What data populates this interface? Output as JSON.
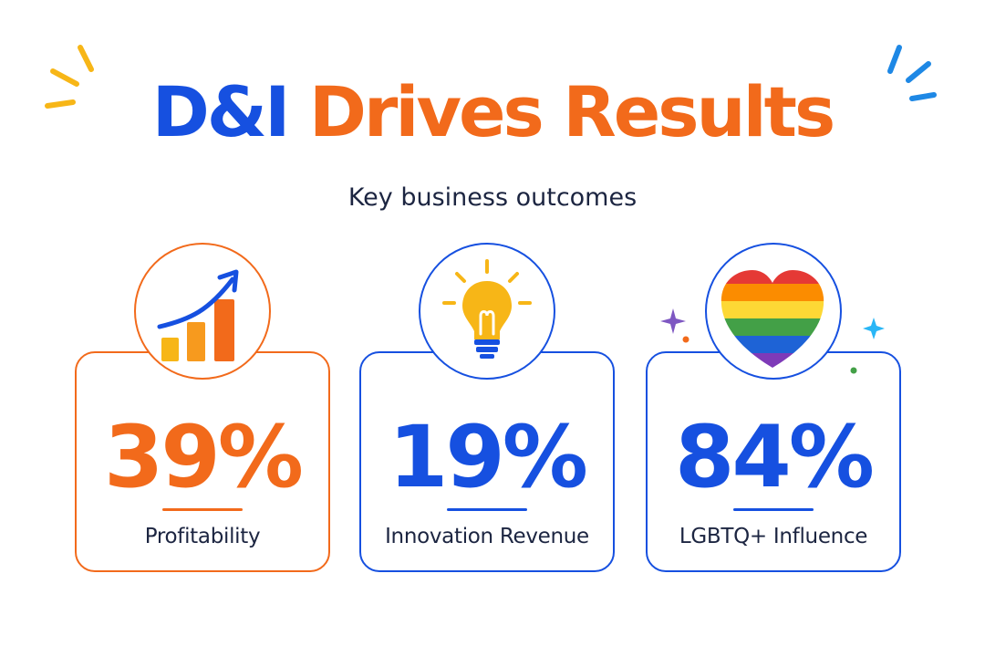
{
  "header": {
    "title_part_1": "D&I",
    "title_part_2": "Drives Results",
    "subtitle": "Key business outcomes"
  },
  "colors": {
    "blue": "#1650e0",
    "orange": "#f26a1b",
    "yellow": "#f7b617",
    "text": "#1c2541"
  },
  "stats": [
    {
      "value": "39%",
      "label": "Profitability",
      "icon": "growth-chart-icon",
      "accent": "#f26a1b"
    },
    {
      "value": "19%",
      "label": "Innovation Revenue",
      "icon": "lightbulb-icon",
      "accent": "#1650e0"
    },
    {
      "value": "84%",
      "label": "LGBTQ+ Influence",
      "icon": "rainbow-heart-icon",
      "accent": "#1650e0"
    }
  ]
}
